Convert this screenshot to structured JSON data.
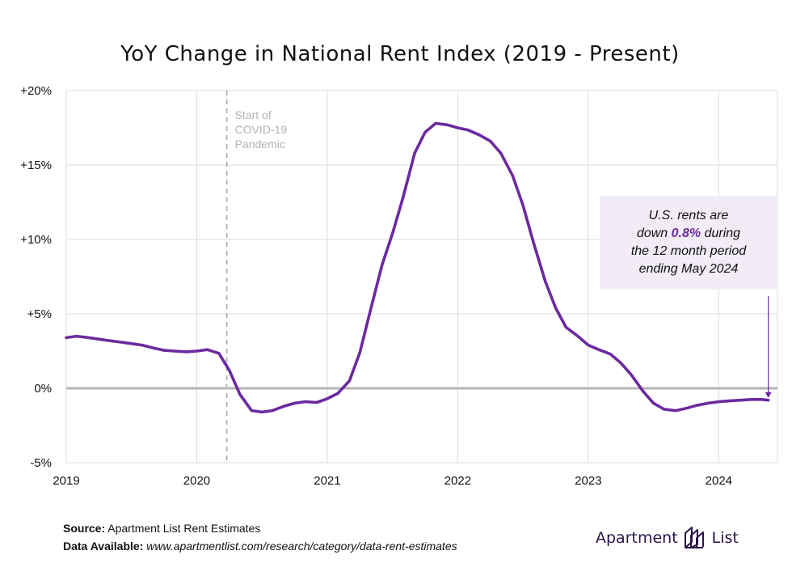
{
  "chart_data": {
    "type": "line",
    "title": "YoY Change in National Rent Index (2019 - Present)",
    "xlabel": "",
    "ylabel": "",
    "xlim": [
      2019.0,
      2024.45
    ],
    "ylim": [
      -5,
      20
    ],
    "y_ticks": [
      -5,
      0,
      5,
      10,
      15,
      20
    ],
    "y_tick_labels": [
      "-5%",
      "0%",
      "+5%",
      "+10%",
      "+15%",
      "+20%"
    ],
    "x_ticks": [
      2019,
      2020,
      2021,
      2022,
      2023,
      2024
    ],
    "x_tick_labels": [
      "2019",
      "2020",
      "2021",
      "2022",
      "2023",
      "2024"
    ],
    "grid": true,
    "series": [
      {
        "name": "YoY Change in National Rent Index",
        "color": "#6c2a9e",
        "points": [
          [
            2019.0,
            3.4
          ],
          [
            2019.08,
            3.5
          ],
          [
            2019.17,
            3.4
          ],
          [
            2019.25,
            3.3
          ],
          [
            2019.33,
            3.2
          ],
          [
            2019.42,
            3.1
          ],
          [
            2019.5,
            3.0
          ],
          [
            2019.58,
            2.9
          ],
          [
            2019.67,
            2.7
          ],
          [
            2019.75,
            2.55
          ],
          [
            2019.83,
            2.5
          ],
          [
            2019.92,
            2.45
          ],
          [
            2020.0,
            2.5
          ],
          [
            2020.08,
            2.6
          ],
          [
            2020.17,
            2.35
          ],
          [
            2020.25,
            1.2
          ],
          [
            2020.33,
            -0.4
          ],
          [
            2020.42,
            -1.5
          ],
          [
            2020.5,
            -1.6
          ],
          [
            2020.58,
            -1.5
          ],
          [
            2020.67,
            -1.2
          ],
          [
            2020.75,
            -1.0
          ],
          [
            2020.83,
            -0.9
          ],
          [
            2020.92,
            -0.95
          ],
          [
            2021.0,
            -0.7
          ],
          [
            2021.08,
            -0.35
          ],
          [
            2021.17,
            0.5
          ],
          [
            2021.25,
            2.4
          ],
          [
            2021.33,
            5.2
          ],
          [
            2021.42,
            8.3
          ],
          [
            2021.5,
            10.4
          ],
          [
            2021.58,
            12.8
          ],
          [
            2021.67,
            15.8
          ],
          [
            2021.75,
            17.2
          ],
          [
            2021.83,
            17.8
          ],
          [
            2021.92,
            17.7
          ],
          [
            2022.0,
            17.5
          ],
          [
            2022.08,
            17.35
          ],
          [
            2022.17,
            17.0
          ],
          [
            2022.25,
            16.6
          ],
          [
            2022.33,
            15.8
          ],
          [
            2022.42,
            14.3
          ],
          [
            2022.5,
            12.3
          ],
          [
            2022.58,
            9.8
          ],
          [
            2022.67,
            7.2
          ],
          [
            2022.75,
            5.4
          ],
          [
            2022.83,
            4.1
          ],
          [
            2022.92,
            3.5
          ],
          [
            2023.0,
            2.9
          ],
          [
            2023.08,
            2.6
          ],
          [
            2023.17,
            2.3
          ],
          [
            2023.25,
            1.7
          ],
          [
            2023.33,
            0.9
          ],
          [
            2023.42,
            -0.2
          ],
          [
            2023.5,
            -1.0
          ],
          [
            2023.58,
            -1.4
          ],
          [
            2023.67,
            -1.5
          ],
          [
            2023.75,
            -1.35
          ],
          [
            2023.83,
            -1.15
          ],
          [
            2023.92,
            -1.0
          ],
          [
            2024.0,
            -0.9
          ],
          [
            2024.08,
            -0.85
          ],
          [
            2024.17,
            -0.8
          ],
          [
            2024.25,
            -0.75
          ],
          [
            2024.33,
            -0.75
          ],
          [
            2024.38,
            -0.8
          ]
        ]
      }
    ],
    "reference_lines": [
      {
        "axis": "x",
        "value": 2020.23,
        "style": "dashed",
        "label_lines": [
          "Start of",
          "COVID-19",
          "Pandemic"
        ]
      },
      {
        "axis": "y",
        "value": 0,
        "style": "solid"
      }
    ],
    "callout": {
      "text_before": "U.S. rents are down ",
      "highlight": "0.8%",
      "text_after": " during the 12 month period ending May 2024",
      "lines": [
        "U.S. rents are",
        "down |0.8%| during",
        "the 12 month period",
        "ending May 2024"
      ],
      "arrow_target_x": 2024.38,
      "arrow_target_y": -0.8,
      "background": "#f1ecf6"
    }
  },
  "footer": {
    "source_label": "Source:",
    "source_value": "Apartment List Rent Estimates",
    "data_label": "Data Available:",
    "data_value": "www.apartmentlist.com/research/category/data-rent-estimates"
  },
  "brand": {
    "word_left": "Apartment",
    "word_right": "List"
  },
  "colors": {
    "accent": "#6c2a9e",
    "grid": "#dcdcdc",
    "zero_line": "#b5b5b5",
    "callout_bg": "#f1ecf6"
  }
}
